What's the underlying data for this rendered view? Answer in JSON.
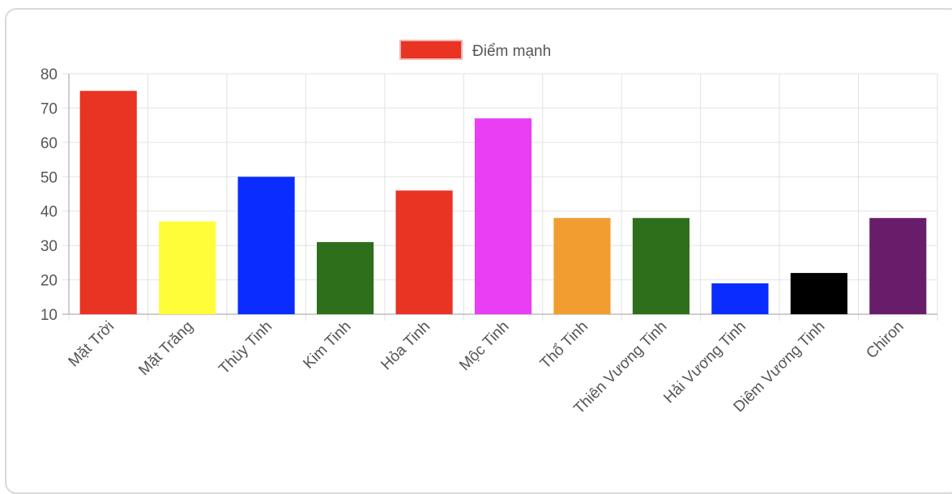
{
  "chart_data": {
    "type": "bar",
    "categories": [
      "Mặt Trời",
      "Mặt Trăng",
      "Thủy Tinh",
      "Kim Tinh",
      "Hỏa Tinh",
      "Mộc Tinh",
      "Thổ Tinh",
      "Thiên Vương Tinh",
      "Hải Vương Tinh",
      "Diêm Vương Tinh",
      "Chiron"
    ],
    "series": [
      {
        "name": "Điểm mạnh",
        "values": [
          75,
          37,
          50,
          31,
          46,
          67,
          38,
          38,
          19,
          22,
          38
        ],
        "colors": [
          "#e93323",
          "#fffc3a",
          "#0a2cff",
          "#2e6f1c",
          "#e93323",
          "#e93ef3",
          "#f29d30",
          "#2e6f1c",
          "#0a2cff",
          "#000000",
          "#681d6b"
        ]
      }
    ],
    "ylim": [
      10,
      80
    ],
    "yticks": [
      10,
      20,
      30,
      40,
      50,
      60,
      70,
      80
    ],
    "grid": true,
    "legend": "top-center",
    "legend_color": "#e93323",
    "title": "",
    "xlabel": "",
    "ylabel": ""
  }
}
